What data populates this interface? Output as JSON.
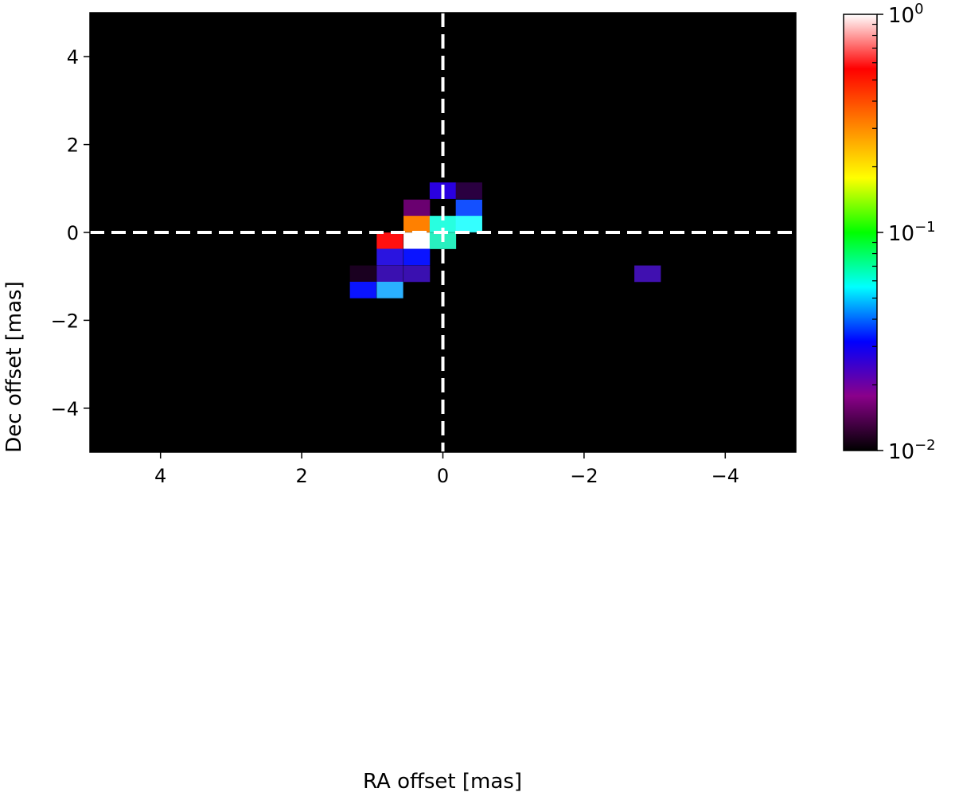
{
  "chart_data": {
    "type": "heatmap",
    "title": "",
    "xlabel": "RA offset [mas]",
    "ylabel": "Dec offset [mas]",
    "xlim": [
      5,
      -5
    ],
    "ylim": [
      -5,
      5
    ],
    "x_inverted": true,
    "cell_size_mas": 0.375,
    "xticks": [
      {
        "value": 4,
        "label": "4"
      },
      {
        "value": 2,
        "label": "2"
      },
      {
        "value": 0,
        "label": "0"
      },
      {
        "value": -2,
        "label": "−2"
      },
      {
        "value": -4,
        "label": "−4"
      }
    ],
    "yticks": [
      {
        "value": 4,
        "label": "4"
      },
      {
        "value": 2,
        "label": "2"
      },
      {
        "value": 0,
        "label": "0"
      },
      {
        "value": -2,
        "label": "−2"
      },
      {
        "value": -4,
        "label": "−4"
      }
    ],
    "background": "#000000",
    "crosshair": {
      "x": 0,
      "y": 0,
      "style": "dashed",
      "color": "#ffffff"
    },
    "colorbar": {
      "scale": "log",
      "vmin": 0.01,
      "vmax": 1,
      "colormap": "gist_ncar-like",
      "stops": [
        "#000000",
        "#8a008a",
        "#0000ff",
        "#00ffff",
        "#00ff00",
        "#ffff00",
        "#ff8000",
        "#ff0000",
        "#ffffff"
      ],
      "tick_labels": [
        {
          "value": 1,
          "base": "10",
          "exp": "0"
        },
        {
          "value": 0.1,
          "base": "10",
          "exp": "−1"
        },
        {
          "value": 0.01,
          "base": "10",
          "exp": "−2"
        }
      ]
    },
    "cells": [
      {
        "ra": -0.0,
        "dec": 0.95,
        "color": "#2a00e0"
      },
      {
        "ra": -0.37,
        "dec": 0.95,
        "color": "#2a0040"
      },
      {
        "ra": 0.37,
        "dec": 0.56,
        "color": "#6a0070"
      },
      {
        "ra": -0.37,
        "dec": 0.56,
        "color": "#1450ff"
      },
      {
        "ra": 0.37,
        "dec": 0.19,
        "color": "#ff8000"
      },
      {
        "ra": -0.0,
        "dec": 0.19,
        "color": "#28ffe0"
      },
      {
        "ra": -0.37,
        "dec": 0.19,
        "color": "#34ffff"
      },
      {
        "ra": 0.75,
        "dec": -0.19,
        "color": "#ff1010"
      },
      {
        "ra": 0.37,
        "dec": -0.19,
        "color": "#ffffff"
      },
      {
        "ra": -0.0,
        "dec": -0.19,
        "color": "#28f0c0"
      },
      {
        "ra": 0.75,
        "dec": -0.56,
        "color": "#2a14e0"
      },
      {
        "ra": 0.37,
        "dec": -0.56,
        "color": "#0a14ff"
      },
      {
        "ra": 1.13,
        "dec": -0.94,
        "color": "#1a0020"
      },
      {
        "ra": 0.75,
        "dec": -0.94,
        "color": "#3a10b0"
      },
      {
        "ra": 0.37,
        "dec": -0.94,
        "color": "#3a10b0"
      },
      {
        "ra": 1.13,
        "dec": -1.31,
        "color": "#0a14ff"
      },
      {
        "ra": 0.75,
        "dec": -1.31,
        "color": "#2ab0ff"
      },
      {
        "ra": -2.9,
        "dec": -0.94,
        "color": "#4010b0"
      }
    ]
  }
}
